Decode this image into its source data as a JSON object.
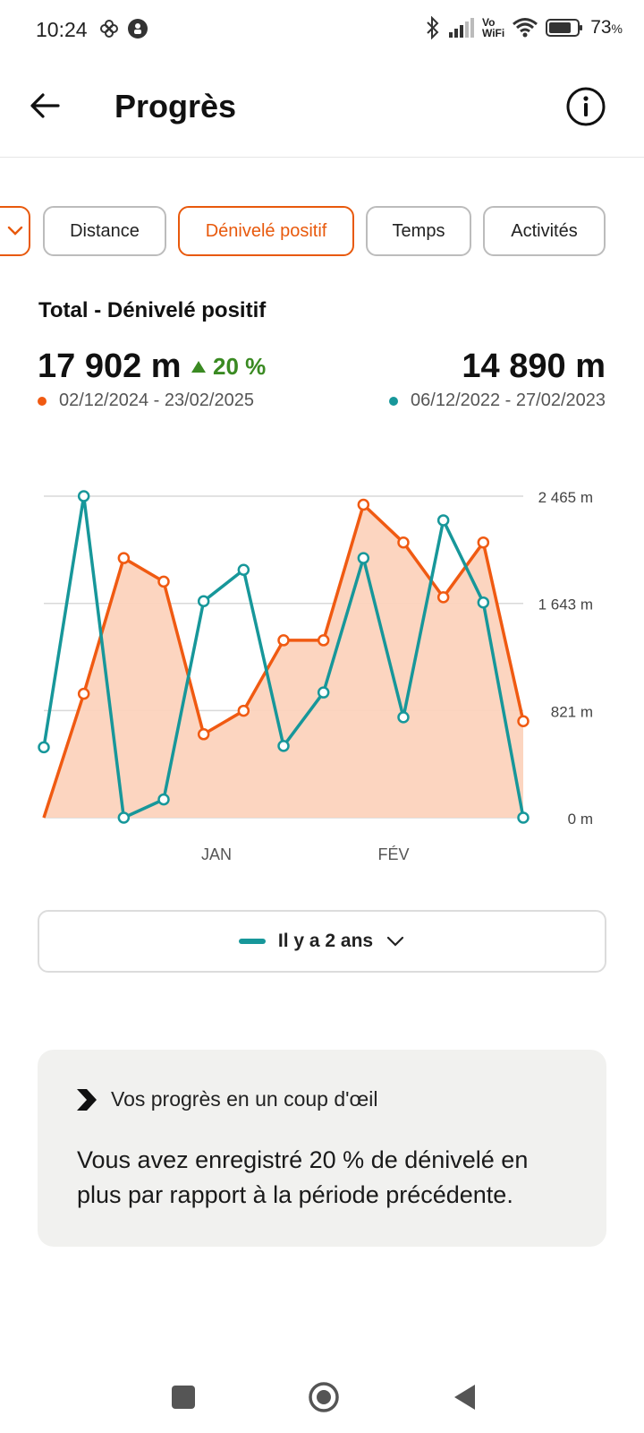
{
  "status_bar": {
    "time": "10:24",
    "volte": "Vo",
    "wifi_label": "WiFi",
    "battery": "73",
    "battery_unit": "%",
    "icons": [
      "flower-icon",
      "notification-icon",
      "bluetooth-icon",
      "signal-icon",
      "wifi-icon",
      "battery-icon"
    ]
  },
  "header": {
    "title": "Progrès",
    "back_icon": "arrow-left-icon",
    "info_icon": "info-icon"
  },
  "chips": {
    "filter_icon": "chevron-down-icon",
    "items": [
      {
        "label": "Distance",
        "active": false
      },
      {
        "label": "Dénivelé positif",
        "active": true
      },
      {
        "label": "Temps",
        "active": false
      },
      {
        "label": "Activités",
        "active": false
      }
    ]
  },
  "summary": {
    "title": "Total - Dénivelé positif",
    "current_value": "17 902 m",
    "trend": "20 %",
    "trend_direction": "up",
    "previous_value": "14 890 m",
    "current_range": "02/12/2024 - 23/02/2025",
    "previous_range": "06/12/2022 - 27/02/2023"
  },
  "colors": {
    "accent": "#e8590c",
    "current_series": "#f05a12",
    "current_fill": "#fcd3bd",
    "previous_series": "#17979a",
    "trend_up": "#3a8a22",
    "card_bg": "#f1f1ef"
  },
  "chart_data": {
    "type": "line",
    "x_tick_labels": [
      "JAN",
      "FÉV"
    ],
    "y_tick_labels": [
      "2 465 m",
      "1 643 m",
      "821 m",
      "0 m"
    ],
    "y_ticks": [
      2465,
      1643,
      821,
      0
    ],
    "ylim": [
      0,
      2465
    ],
    "grid": true,
    "series": [
      {
        "name": "02/12/2024 - 23/02/2025",
        "style": "area",
        "values": [
          0,
          950,
          1990,
          1810,
          640,
          820,
          1360,
          1360,
          2400,
          2110,
          1690,
          2110,
          740
        ]
      },
      {
        "name": "06/12/2022 - 27/02/2023",
        "style": "line",
        "values": [
          540,
          2465,
          0,
          140,
          1660,
          1900,
          550,
          960,
          1990,
          770,
          2280,
          1650,
          0
        ]
      }
    ]
  },
  "compare": {
    "label": "Il y a 2 ans",
    "chevron_icon": "chevron-down-icon"
  },
  "insight": {
    "icon": "chevron-right-bold-icon",
    "title": "Vos progrès en un coup d'œil",
    "text": "Vous avez enregistré 20 % de dénivelé en plus par rapport à la période précédente."
  },
  "nav": {
    "icons": [
      "recents-icon",
      "home-icon",
      "back-icon"
    ]
  }
}
